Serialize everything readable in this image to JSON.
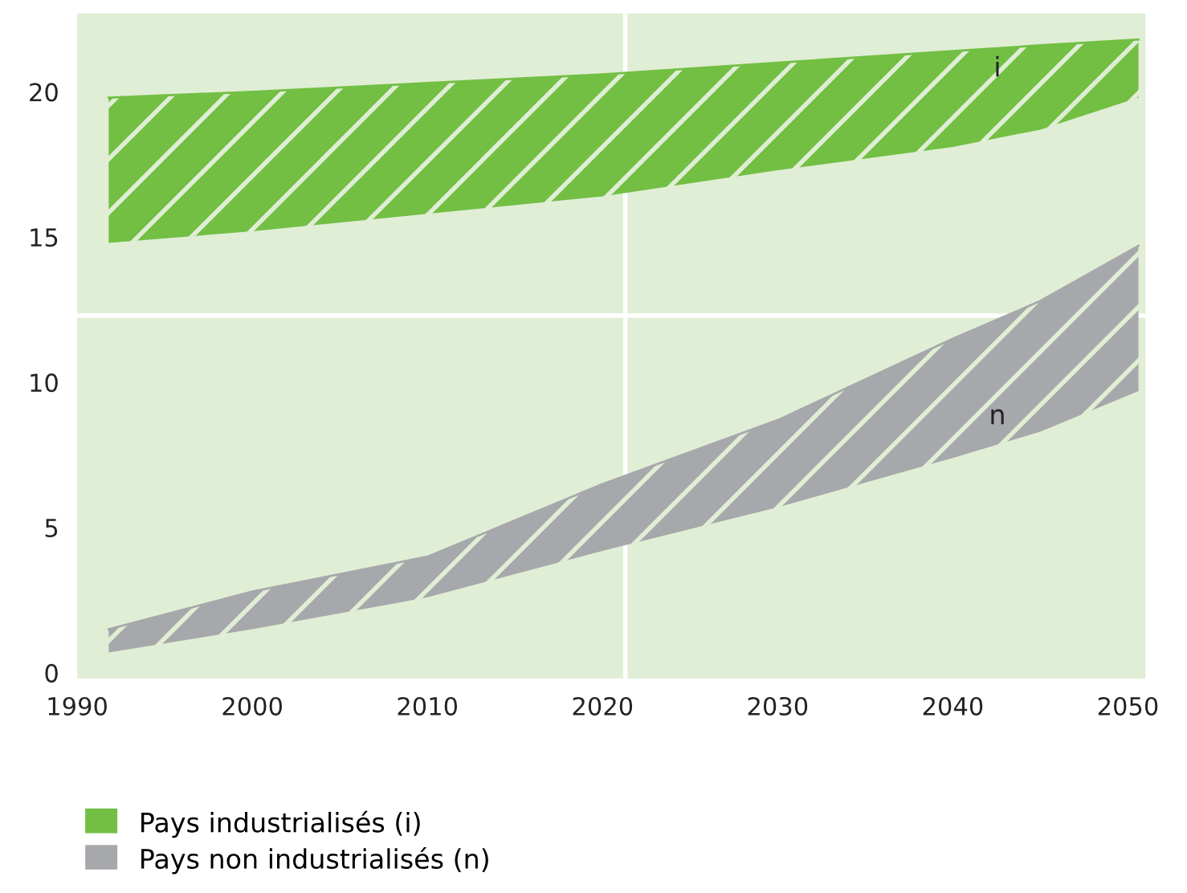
{
  "chart_data": {
    "type": "line",
    "x": [
      1991.8,
      2000,
      2010,
      2020,
      2030,
      2040,
      2045,
      2050.6
    ],
    "series": [
      {
        "name": "Pays industrialisés (i)",
        "color": "#72bf44",
        "values": [
          19.8,
          20.0,
          20.3,
          20.6,
          21.0,
          21.4,
          21.6,
          21.8
        ],
        "upper": [
          19.8,
          20.0,
          20.3,
          20.6,
          21.0,
          21.4,
          21.6,
          21.8
        ],
        "lower": [
          14.8,
          15.2,
          15.8,
          16.4,
          17.3,
          18.1,
          18.7,
          19.8
        ]
      },
      {
        "name": "Pays non industrialisés (n)",
        "color": "#a7a8ab",
        "values": [
          1.5,
          2.8,
          4.0,
          6.5,
          8.7,
          11.5,
          12.8,
          14.7
        ],
        "upper": [
          1.5,
          2.8,
          4.0,
          6.5,
          8.7,
          11.5,
          12.8,
          14.7
        ],
        "lower": [
          0.7,
          1.5,
          2.6,
          4.2,
          5.7,
          7.4,
          8.3,
          9.7
        ]
      }
    ],
    "xlim": [
      1990,
      2051
    ],
    "xticks": [
      1990,
      2000,
      2010,
      2020,
      2030,
      2040,
      2050
    ],
    "ylim": [
      -0.2,
      22.7
    ],
    "yticks": [
      0,
      5,
      10,
      15,
      20
    ],
    "ref_lines": [
      {
        "axis": "x",
        "value": 2021.3,
        "color": "#ffffff"
      },
      {
        "axis": "y",
        "value": 12.3,
        "color": "#ffffff"
      }
    ],
    "annotations": [
      "i",
      "n"
    ],
    "grid": false,
    "legend": "bottom left"
  }
}
